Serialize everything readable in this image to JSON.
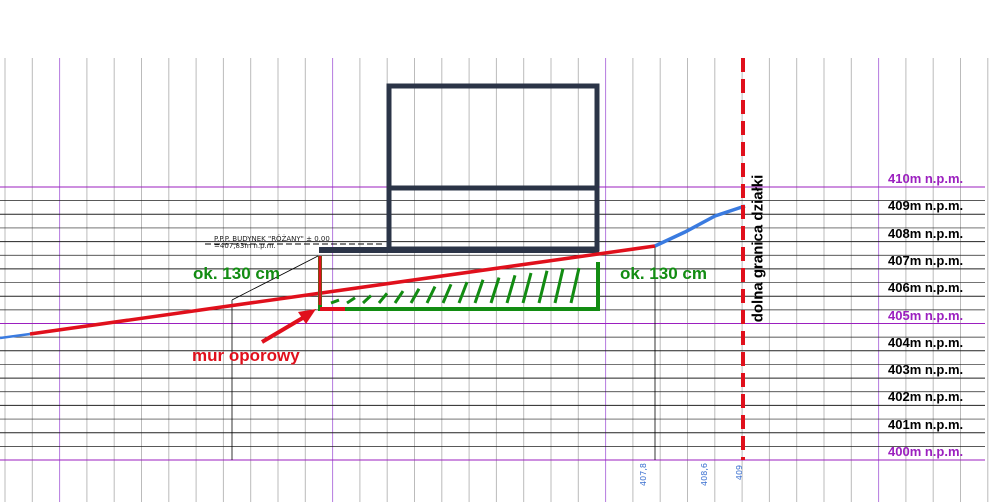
{
  "levels": [
    {
      "label": "410m n.p.m.",
      "value": 410,
      "major": true
    },
    {
      "label": "409m n.p.m.",
      "value": 409,
      "major": false
    },
    {
      "label": "408m n.p.m.",
      "value": 408,
      "major": false
    },
    {
      "label": "407m n.p.m.",
      "value": 407,
      "major": false
    },
    {
      "label": "406m n.p.m.",
      "value": 406,
      "major": false
    },
    {
      "label": "405m n.p.m.",
      "value": 405,
      "major": true
    },
    {
      "label": "404m n.p.m.",
      "value": 404,
      "major": false
    },
    {
      "label": "403m n.p.m.",
      "value": 403,
      "major": false
    },
    {
      "label": "402m n.p.m.",
      "value": 402,
      "major": false
    },
    {
      "label": "401m n.p.m.",
      "value": 401,
      "major": false
    },
    {
      "label": "400m n.p.m.",
      "value": 400,
      "major": true
    }
  ],
  "building_label": {
    "line1": "P.P.P. BUDYNEK \"RÓŻANY\" ± 0,00",
    "line2": "=407,83m n.p.m."
  },
  "dimension_left": "ok. 130 cm",
  "dimension_right": "ok. 130 cm",
  "wall_label": "mur oporowy",
  "boundary_label": "dolna granica działki",
  "bottom_marks": [
    "407,8",
    "408,6",
    "409"
  ],
  "colors": {
    "major_level": "#9b1fbf",
    "grid": "#000000",
    "terrain": "#e0101c",
    "terrain_ext": "#3a7be0",
    "wall": "#128c12",
    "building": "#2b3447",
    "mark": "#3a6fd0"
  }
}
